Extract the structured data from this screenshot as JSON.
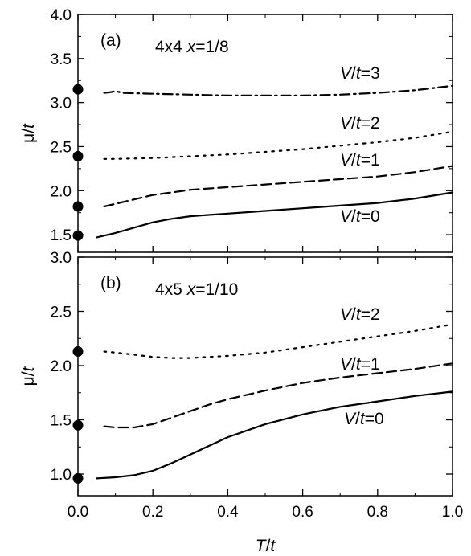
{
  "chart_data": [
    {
      "type": "line",
      "panel_label": "(a)",
      "subtitle_size": "4x4",
      "subtitle_var": "x",
      "subtitle_value": "=1/8",
      "xlabel": "T/t",
      "ylabel": "μ/t",
      "xlim": [
        0.0,
        1.0
      ],
      "ylim": [
        1.3,
        4.0
      ],
      "xticks": [
        "0.0",
        "0.2",
        "0.4",
        "0.6",
        "0.8",
        "1.0"
      ],
      "yticks": [
        "1.5",
        "2.0",
        "2.5",
        "3.0",
        "3.5",
        "4.0"
      ],
      "series": [
        {
          "name": "V/t=0",
          "label_pre": "V",
          "label_post": "/t=0",
          "dash": "solid",
          "x": [
            0.05,
            0.1,
            0.15,
            0.2,
            0.25,
            0.3,
            0.4,
            0.5,
            0.6,
            0.7,
            0.8,
            0.9,
            1.0
          ],
          "y": [
            1.47,
            1.52,
            1.58,
            1.64,
            1.68,
            1.71,
            1.74,
            1.77,
            1.8,
            1.83,
            1.86,
            1.91,
            1.98
          ]
        },
        {
          "name": "V/t=1",
          "label_pre": "V",
          "label_post": "/t=1",
          "dash": "dash",
          "x": [
            0.07,
            0.1,
            0.15,
            0.2,
            0.25,
            0.3,
            0.4,
            0.5,
            0.6,
            0.7,
            0.8,
            0.9,
            1.0
          ],
          "y": [
            1.82,
            1.85,
            1.9,
            1.95,
            1.98,
            2.01,
            2.04,
            2.07,
            2.1,
            2.13,
            2.16,
            2.21,
            2.28
          ]
        },
        {
          "name": "V/t=2",
          "label_pre": "V",
          "label_post": "/t=2",
          "dash": "dot",
          "x": [
            0.07,
            0.1,
            0.2,
            0.3,
            0.4,
            0.5,
            0.6,
            0.7,
            0.8,
            0.9,
            1.0
          ],
          "y": [
            2.36,
            2.36,
            2.37,
            2.39,
            2.41,
            2.44,
            2.47,
            2.51,
            2.55,
            2.6,
            2.67
          ]
        },
        {
          "name": "V/t=3",
          "label_pre": "V",
          "label_post": "/t=3",
          "dash": "dashdot",
          "x": [
            0.07,
            0.09,
            0.1,
            0.12,
            0.2,
            0.3,
            0.4,
            0.5,
            0.6,
            0.7,
            0.8,
            0.9,
            1.0
          ],
          "y": [
            3.11,
            3.12,
            3.13,
            3.11,
            3.1,
            3.09,
            3.08,
            3.08,
            3.08,
            3.09,
            3.11,
            3.14,
            3.19
          ]
        }
      ],
      "points": {
        "x": 0.0,
        "y": [
          3.15,
          2.39,
          1.82,
          1.49
        ]
      }
    },
    {
      "type": "line",
      "panel_label": "(b)",
      "subtitle_size": "4x5",
      "subtitle_var": "x",
      "subtitle_value": "=1/10",
      "xlabel": "T/t",
      "ylabel": "μ/t",
      "xlim": [
        0.0,
        1.0
      ],
      "ylim": [
        0.8,
        3.0
      ],
      "xticks": [
        "0.0",
        "0.2",
        "0.4",
        "0.6",
        "0.8",
        "1.0"
      ],
      "yticks": [
        "1.0",
        "1.5",
        "2.0",
        "2.5",
        "3.0"
      ],
      "series": [
        {
          "name": "V/t=0",
          "label_pre": "V",
          "label_post": "/t=0",
          "dash": "solid",
          "x": [
            0.05,
            0.1,
            0.15,
            0.2,
            0.25,
            0.3,
            0.35,
            0.4,
            0.5,
            0.6,
            0.7,
            0.8,
            0.9,
            1.0
          ],
          "y": [
            0.96,
            0.97,
            0.99,
            1.03,
            1.1,
            1.18,
            1.26,
            1.34,
            1.46,
            1.55,
            1.62,
            1.67,
            1.72,
            1.76
          ]
        },
        {
          "name": "V/t=1",
          "label_pre": "V",
          "label_post": "/t=1",
          "dash": "dash",
          "x": [
            0.07,
            0.1,
            0.15,
            0.2,
            0.25,
            0.3,
            0.35,
            0.4,
            0.5,
            0.6,
            0.7,
            0.8,
            0.9,
            1.0
          ],
          "y": [
            1.44,
            1.43,
            1.43,
            1.46,
            1.52,
            1.58,
            1.64,
            1.69,
            1.77,
            1.84,
            1.89,
            1.93,
            1.97,
            2.02
          ]
        },
        {
          "name": "V/t=2",
          "label_pre": "V",
          "label_post": "/t=2",
          "dash": "dot",
          "x": [
            0.07,
            0.1,
            0.15,
            0.2,
            0.25,
            0.3,
            0.35,
            0.4,
            0.5,
            0.6,
            0.7,
            0.8,
            0.9,
            1.0
          ],
          "y": [
            2.13,
            2.12,
            2.1,
            2.08,
            2.07,
            2.07,
            2.08,
            2.09,
            2.12,
            2.17,
            2.22,
            2.27,
            2.32,
            2.38
          ]
        }
      ],
      "points": {
        "x": 0.0,
        "y": [
          2.13,
          1.45,
          0.96
        ]
      }
    }
  ]
}
